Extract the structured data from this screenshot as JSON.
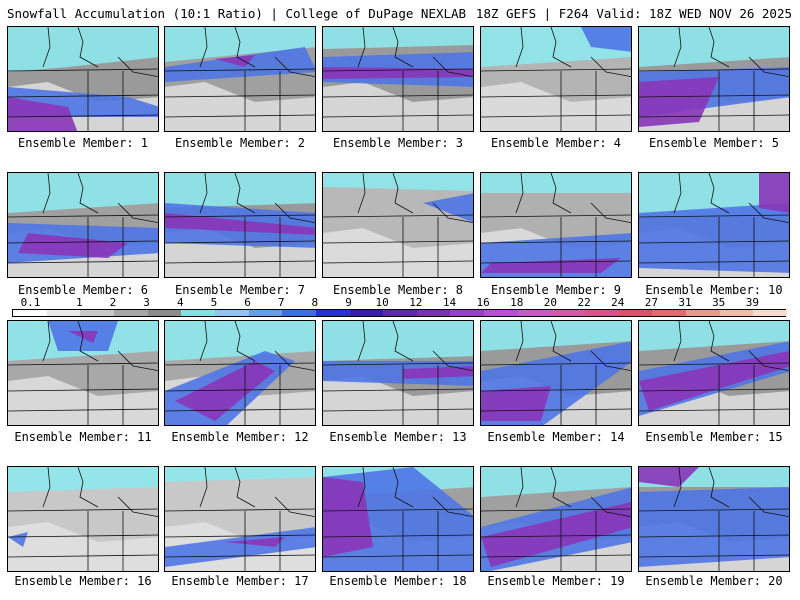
{
  "header": {
    "left_title": "Snowfall Accumulation (10:1 Ratio) | College of DuPage NEXLAB",
    "right_title": "18Z GEFS | F264 Valid: 18Z WED NOV 26 2025"
  },
  "members": [
    {
      "label": "Ensemble Member: 1"
    },
    {
      "label": "Ensemble Member: 2"
    },
    {
      "label": "Ensemble Member: 3"
    },
    {
      "label": "Ensemble Member: 4"
    },
    {
      "label": "Ensemble Member: 5"
    },
    {
      "label": "Ensemble Member: 6"
    },
    {
      "label": "Ensemble Member: 7"
    },
    {
      "label": "Ensemble Member: 8"
    },
    {
      "label": "Ensemble Member: 9"
    },
    {
      "label": "Ensemble Member: 10"
    },
    {
      "label": "Ensemble Member: 11"
    },
    {
      "label": "Ensemble Member: 12"
    },
    {
      "label": "Ensemble Member: 13"
    },
    {
      "label": "Ensemble Member: 14"
    },
    {
      "label": "Ensemble Member: 15"
    },
    {
      "label": "Ensemble Member: 16"
    },
    {
      "label": "Ensemble Member: 17"
    },
    {
      "label": "Ensemble Member: 18"
    },
    {
      "label": "Ensemble Member: 19"
    },
    {
      "label": "Ensemble Member: 20"
    }
  ],
  "legend": {
    "ticks": [
      "0.1",
      "1",
      "2",
      "3",
      "4",
      "5",
      "6",
      "7",
      "8",
      "9",
      "10",
      "12",
      "14",
      "16",
      "18",
      "20",
      "22",
      "24",
      "27",
      "31",
      "35",
      "39"
    ],
    "colors": [
      "#ffffff",
      "#e9e9e9",
      "#c8c8c8",
      "#a6a6a6",
      "#8c8c8c",
      "#7fe3e3",
      "#8fc5f5",
      "#62a1ea",
      "#3b6fe0",
      "#2431d4",
      "#3b1ea8",
      "#5e2aa8",
      "#7b2fb6",
      "#9a3fc8",
      "#b64fd6",
      "#c45bc8",
      "#d05aa8",
      "#d8528a",
      "#dc4f6a",
      "#e06a6a",
      "#e89a8a",
      "#f0bca8",
      "#f7dccb"
    ]
  }
}
